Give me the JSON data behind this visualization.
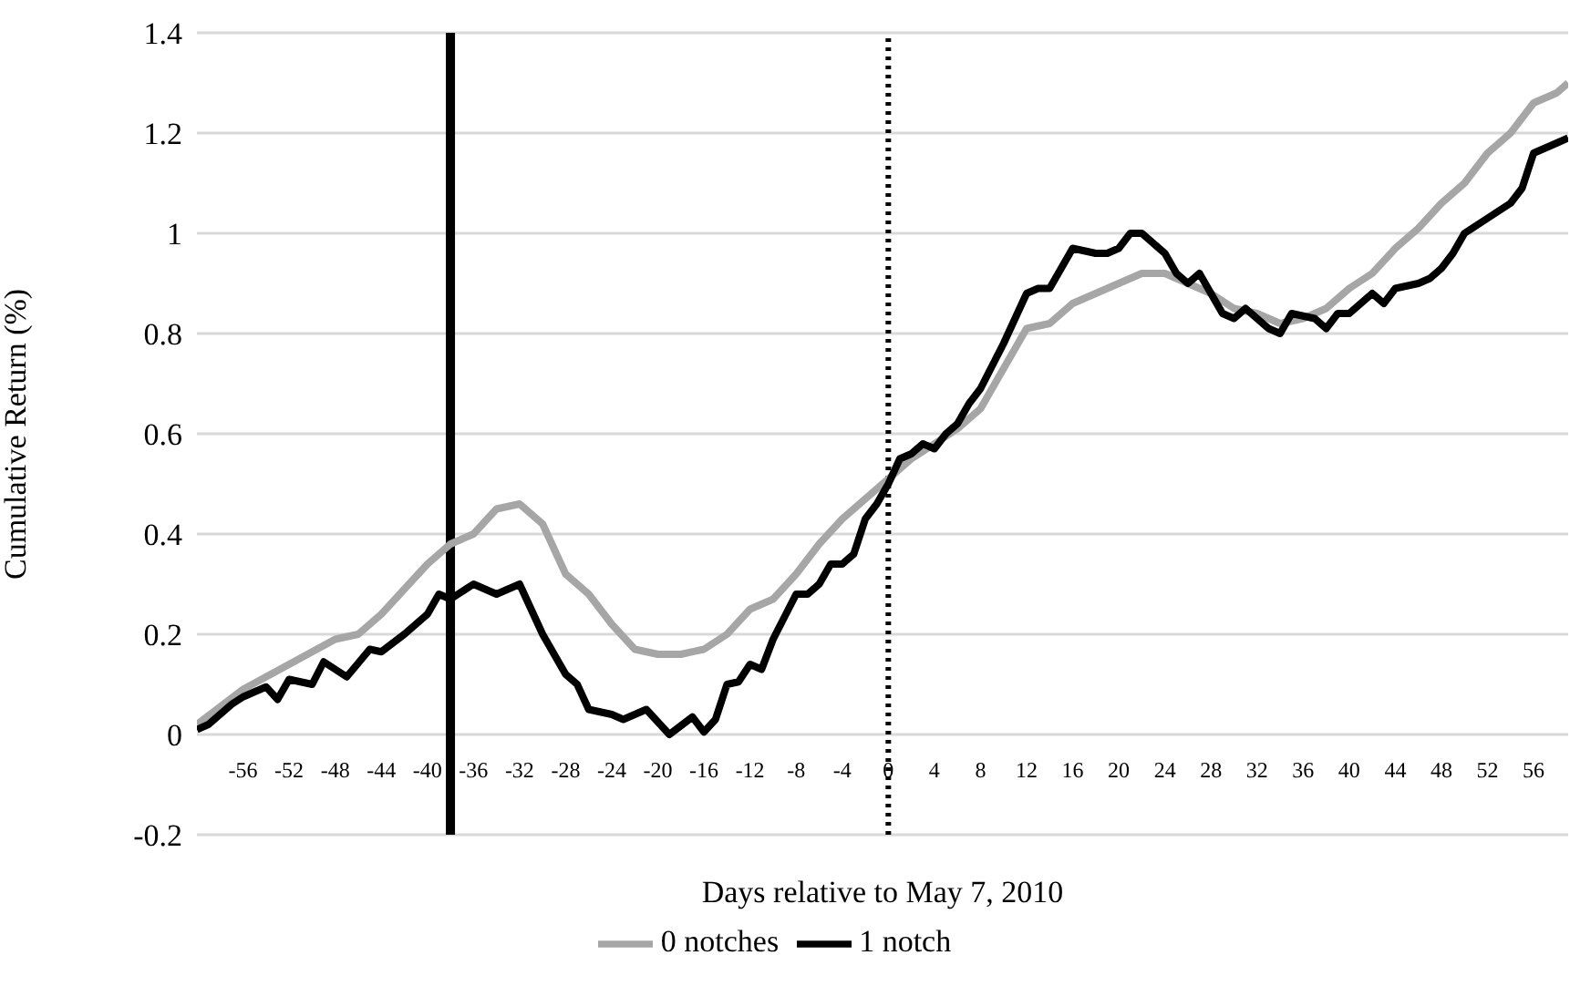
{
  "chart_data": {
    "type": "line",
    "xlabel": "Days relative to May 7, 2010",
    "ylabel": "Cumulative Return (%)",
    "xlim": [
      -60,
      59
    ],
    "xticks": [
      -56,
      -52,
      -48,
      -44,
      -40,
      -36,
      -32,
      -28,
      -24,
      -20,
      -16,
      -12,
      -8,
      -4,
      0,
      4,
      8,
      12,
      16,
      20,
      24,
      28,
      32,
      36,
      40,
      44,
      48,
      52,
      56
    ],
    "ylim": [
      -0.2,
      1.4
    ],
    "yticks": [
      -0.2,
      0,
      0.2,
      0.4,
      0.6,
      0.8,
      1,
      1.2,
      1.4
    ],
    "grid": "y",
    "legend": "bottom",
    "line_style": "solid",
    "marker": "none",
    "ref_lines": [
      {
        "axis": "x",
        "value": -38,
        "color": "#000000",
        "line_style": "solid"
      },
      {
        "axis": "x",
        "value": 0,
        "color": "#000000",
        "line_style": "dotted"
      }
    ],
    "series": [
      {
        "name": "0 notches",
        "color": "#a6a6a6",
        "x": [
          -60,
          -56,
          -52,
          -48,
          -46,
          -44,
          -40,
          -38,
          -36,
          -34,
          -32,
          -30,
          -28,
          -26,
          -24,
          -22,
          -20,
          -18,
          -16,
          -14,
          -12,
          -10,
          -8,
          -6,
          -4,
          -2,
          0,
          2,
          4,
          6,
          8,
          10,
          12,
          14,
          16,
          18,
          20,
          22,
          24,
          26,
          28,
          30,
          32,
          34,
          36,
          38,
          40,
          42,
          44,
          46,
          48,
          50,
          52,
          54,
          56,
          58,
          59
        ],
        "values": [
          0.02,
          0.09,
          0.14,
          0.19,
          0.2,
          0.24,
          0.34,
          0.38,
          0.4,
          0.45,
          0.46,
          0.42,
          0.32,
          0.28,
          0.22,
          0.17,
          0.16,
          0.16,
          0.17,
          0.2,
          0.25,
          0.27,
          0.32,
          0.38,
          0.43,
          0.47,
          0.51,
          0.55,
          0.58,
          0.61,
          0.65,
          0.73,
          0.81,
          0.82,
          0.86,
          0.88,
          0.9,
          0.92,
          0.92,
          0.9,
          0.88,
          0.85,
          0.84,
          0.82,
          0.83,
          0.85,
          0.89,
          0.92,
          0.97,
          1.01,
          1.06,
          1.1,
          1.16,
          1.2,
          1.26,
          1.28,
          1.3
        ]
      },
      {
        "name": "1 notch",
        "color": "#000000",
        "x": [
          -60,
          -59,
          -57,
          -56,
          -54,
          -53,
          -52,
          -50,
          -49,
          -47,
          -45,
          -44,
          -42,
          -40,
          -39,
          -38,
          -36,
          -34,
          -32,
          -30,
          -28,
          -27,
          -26,
          -24,
          -23,
          -21,
          -19,
          -17,
          -16,
          -15,
          -14,
          -13,
          -12,
          -11,
          -10,
          -8,
          -7,
          -6,
          -5,
          -4,
          -3,
          -2,
          -1,
          0,
          1,
          2,
          3,
          4,
          5,
          6,
          7,
          8,
          10,
          12,
          13,
          14,
          16,
          18,
          19,
          20,
          21,
          22,
          23,
          24,
          25,
          26,
          27,
          29,
          30,
          31,
          33,
          34,
          35,
          37,
          38,
          39,
          40,
          42,
          43,
          44,
          46,
          47,
          48,
          49,
          50,
          52,
          54,
          55,
          56,
          58,
          59
        ],
        "values": [
          0.01,
          0.02,
          0.06,
          0.075,
          0.095,
          0.07,
          0.11,
          0.1,
          0.145,
          0.115,
          0.17,
          0.165,
          0.2,
          0.24,
          0.28,
          0.27,
          0.3,
          0.28,
          0.3,
          0.2,
          0.12,
          0.1,
          0.05,
          0.04,
          0.03,
          0.05,
          0,
          0.035,
          0.005,
          0.03,
          0.1,
          0.105,
          0.14,
          0.13,
          0.19,
          0.28,
          0.28,
          0.3,
          0.34,
          0.34,
          0.36,
          0.43,
          0.46,
          0.5,
          0.55,
          0.56,
          0.58,
          0.57,
          0.6,
          0.62,
          0.66,
          0.69,
          0.78,
          0.88,
          0.89,
          0.89,
          0.97,
          0.96,
          0.96,
          0.97,
          1,
          1,
          0.98,
          0.96,
          0.92,
          0.9,
          0.92,
          0.84,
          0.83,
          0.85,
          0.81,
          0.8,
          0.84,
          0.83,
          0.81,
          0.84,
          0.84,
          0.88,
          0.86,
          0.89,
          0.9,
          0.91,
          0.93,
          0.96,
          1,
          1.03,
          1.06,
          1.09,
          1.16,
          1.18,
          1.19
        ]
      }
    ]
  }
}
